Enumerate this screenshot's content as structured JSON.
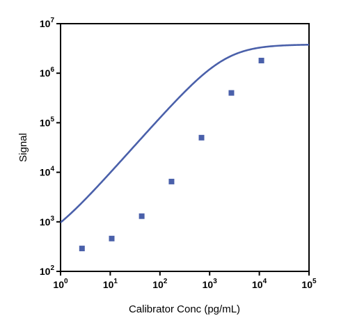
{
  "chart_data": {
    "type": "scatter",
    "xlabel": "Calibrator Conc (pg/mL)",
    "ylabel": "Signal",
    "x_scale": "log",
    "y_scale": "log",
    "xlim": [
      1,
      100000
    ],
    "ylim": [
      100,
      10000000
    ],
    "x_ticks": [
      {
        "value": 1,
        "base": "10",
        "exp": "0"
      },
      {
        "value": 10,
        "base": "10",
        "exp": "1"
      },
      {
        "value": 100,
        "base": "10",
        "exp": "2"
      },
      {
        "value": 1000,
        "base": "10",
        "exp": "3"
      },
      {
        "value": 10000,
        "base": "10",
        "exp": "4"
      },
      {
        "value": 100000,
        "base": "10",
        "exp": "5"
      }
    ],
    "y_ticks": [
      {
        "value": 100,
        "base": "10",
        "exp": "2"
      },
      {
        "value": 1000,
        "base": "10",
        "exp": "3"
      },
      {
        "value": 10000,
        "base": "10",
        "exp": "4"
      },
      {
        "value": 100000,
        "base": "10",
        "exp": "5"
      },
      {
        "value": 1000000,
        "base": "10",
        "exp": "6"
      },
      {
        "value": 10000000,
        "base": "10",
        "exp": "7"
      }
    ],
    "grid": false,
    "series": [
      {
        "marker": "square",
        "color": "#4a60aa",
        "x": [
          2.7,
          10.7,
          43,
          171,
          686,
          2740,
          11000
        ],
        "y": [
          290,
          460,
          1300,
          6500,
          50000,
          400000,
          1800000
        ]
      }
    ],
    "fit_curve": {
      "model": "4PL",
      "bottom": 260,
      "top": 3800000,
      "ec50": 1990,
      "hill": 1.13,
      "color": "#4a60aa"
    },
    "colors": {
      "axis": "#000000",
      "series": "#4a60aa"
    }
  }
}
